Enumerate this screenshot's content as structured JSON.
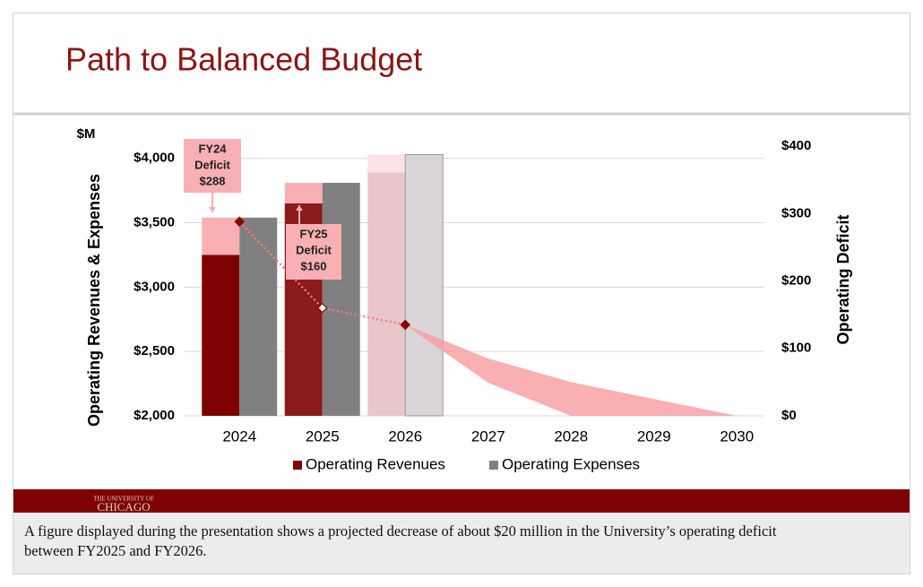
{
  "chart_data": {
    "type": "bar",
    "title": "Path to Balanced Budget",
    "unit_label": "$M",
    "y_label": "Operating Revenues & Expenses",
    "y2_label": "Operating Deficit",
    "categories": [
      "2024",
      "2025",
      "2026",
      "2027",
      "2028",
      "2029",
      "2030"
    ],
    "series": [
      {
        "name": "Operating Revenues",
        "color": "#7f0000",
        "colors": [
          "#7f0000",
          "#8b1a1a",
          "#e9c6ca"
        ],
        "values": [
          3250,
          3650,
          3890,
          null,
          null,
          null,
          null
        ]
      },
      {
        "name": "Operating Expenses",
        "color": "#808080",
        "colors": [
          "#808080",
          "#808080",
          "#d9d5d9"
        ],
        "values": [
          3540,
          3810,
          4030,
          null,
          null,
          null,
          null
        ]
      }
    ],
    "deficit_segment_colors": [
      "#f8b0b4",
      "#f8b0b4",
      "#fbe3e5"
    ],
    "deficit": {
      "axis": "y2",
      "color": "#f07c80",
      "values": [
        288,
        160,
        135,
        null,
        null,
        null,
        null
      ]
    },
    "projection_band": {
      "axis": "y2",
      "color": "#f89ca0",
      "high": [
        null,
        null,
        135,
        85,
        50,
        25,
        0
      ],
      "low": [
        null,
        null,
        135,
        49,
        0,
        0,
        0
      ]
    },
    "annotations": [
      {
        "lines": [
          "FY24",
          "Deficit",
          "$288"
        ]
      },
      {
        "lines": [
          "FY25",
          "Deficit",
          "$160"
        ]
      }
    ],
    "ylim": [
      2000,
      4200
    ],
    "yticks": [
      {
        "value": 2000,
        "label": "$2,000"
      },
      {
        "value": 2500,
        "label": "$2,500"
      },
      {
        "value": 3000,
        "label": "$3,000"
      },
      {
        "value": 3500,
        "label": "$3,500"
      },
      {
        "value": 4000,
        "label": "$4,000"
      }
    ],
    "y2lim": [
      0,
      420
    ],
    "y2ticks": [
      {
        "value": 0,
        "label": "$0"
      },
      {
        "value": 100,
        "label": "$100"
      },
      {
        "value": 200,
        "label": "$200"
      },
      {
        "value": 300,
        "label": "$300"
      },
      {
        "value": 400,
        "label": "$400"
      }
    ],
    "grid": true
  },
  "footer": {
    "logo_line1": "THE UNIVERSITY OF",
    "logo_line2": "CHICAGO"
  },
  "caption": {
    "lines": [
      "A figure displayed during the presentation shows a projected decrease of about $20 million in the University’s operating deficit",
      "between FY2025 and FY2026."
    ]
  }
}
